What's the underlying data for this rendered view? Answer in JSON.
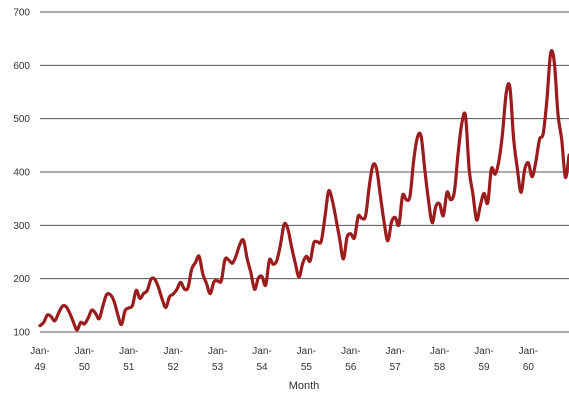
{
  "chart_data": {
    "type": "line",
    "xlabel": "Month",
    "ylabel": "",
    "ylim": [
      100,
      700
    ],
    "yticks": [
      100,
      200,
      300,
      400,
      500,
      600,
      700
    ],
    "xticks": [
      {
        "top": "Jan-",
        "bottom": "49"
      },
      {
        "top": "Jan-",
        "bottom": "50"
      },
      {
        "top": "Jan-",
        "bottom": "51"
      },
      {
        "top": "Jan-",
        "bottom": "52"
      },
      {
        "top": "Jan-",
        "bottom": "53"
      },
      {
        "top": "Jan-",
        "bottom": "54"
      },
      {
        "top": "Jan-",
        "bottom": "55"
      },
      {
        "top": "Jan-",
        "bottom": "56"
      },
      {
        "top": "Jan-",
        "bottom": "57"
      },
      {
        "top": "Jan-",
        "bottom": "58"
      },
      {
        "top": "Jan-",
        "bottom": "59"
      },
      {
        "top": "Jan-",
        "bottom": "60"
      }
    ],
    "grid": "horizontal",
    "line_color": "#9b1c1c",
    "series": [
      {
        "name": "",
        "start": "Jan-49",
        "values": [
          112,
          118,
          132,
          129,
          121,
          135,
          148,
          148,
          136,
          119,
          104,
          118,
          115,
          126,
          141,
          135,
          125,
          149,
          170,
          170,
          158,
          133,
          114,
          140,
          145,
          150,
          178,
          163,
          172,
          178,
          199,
          199,
          184,
          162,
          146,
          166,
          171,
          180,
          193,
          181,
          183,
          218,
          230,
          242,
          209,
          191,
          172,
          194,
          196,
          196,
          236,
          235,
          229,
          243,
          264,
          272,
          237,
          211,
          180,
          201,
          204,
          188,
          235,
          227,
          234,
          264,
          302,
          293,
          259,
          229,
          203,
          229,
          242,
          233,
          267,
          269,
          270,
          315,
          364,
          347,
          312,
          274,
          237,
          278,
          284,
          277,
          317,
          313,
          318,
          374,
          413,
          405,
          355,
          306,
          271,
          306,
          315,
          301,
          356,
          348,
          355,
          422,
          465,
          467,
          404,
          347,
          305,
          336,
          340,
          318,
          362,
          348,
          363,
          435,
          491,
          505,
          404,
          359,
          310,
          337,
          360,
          342,
          406,
          396,
          420,
          472,
          548,
          559,
          463,
          407,
          362,
          405,
          417,
          391,
          419,
          461,
          472,
          535,
          622,
          606,
          508,
          461,
          390,
          432
        ]
      }
    ]
  }
}
